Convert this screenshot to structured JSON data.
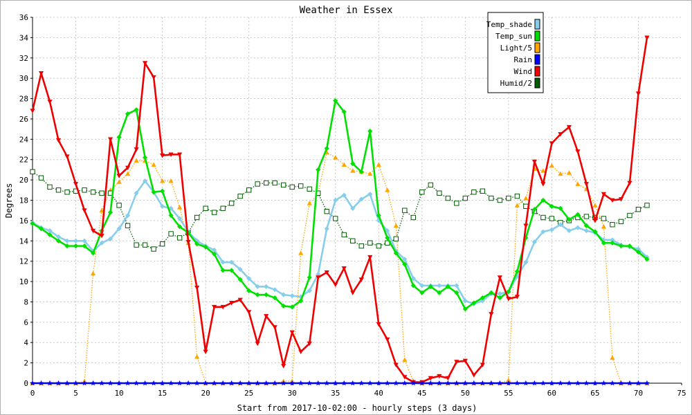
{
  "chart_data": {
    "type": "line",
    "title": "Weather in Essex",
    "xlabel": "Start from 2017-10-02:00 - hourly steps (3 days)",
    "ylabel": "Degrees",
    "xlim": [
      0,
      75
    ],
    "ylim": [
      0,
      36
    ],
    "x_ticks": [
      0,
      5,
      10,
      15,
      20,
      25,
      30,
      35,
      40,
      45,
      50,
      55,
      60,
      65,
      70,
      75
    ],
    "y_ticks": [
      0,
      2,
      4,
      6,
      8,
      10,
      12,
      14,
      16,
      18,
      20,
      22,
      24,
      26,
      28,
      30,
      32,
      34,
      36
    ],
    "grid": true,
    "legend_position": "top-right",
    "series": [
      {
        "name": "Temp_shade",
        "color": "#87ceeb",
        "marker": "diamond",
        "style": "solid",
        "values": [
          15.8,
          15.3,
          15.0,
          14.4,
          14.0,
          14.0,
          14.0,
          13.0,
          13.8,
          14.2,
          15.2,
          16.5,
          18.7,
          19.9,
          18.8,
          17.4,
          17.2,
          16.2,
          14.9,
          14.0,
          13.5,
          13.1,
          11.9,
          11.9,
          11.2,
          10.3,
          9.5,
          9.5,
          9.2,
          8.7,
          8.6,
          8.5,
          9.1,
          10.7,
          15.2,
          18.0,
          18.5,
          17.2,
          18.1,
          18.6,
          16.0,
          15.0,
          13.0,
          12.2,
          10.3,
          9.6,
          9.6,
          9.6,
          9.6,
          9.6,
          8.1,
          7.8,
          8.1,
          8.8,
          8.8,
          9.0,
          10.5,
          11.9,
          13.9,
          14.9,
          15.1,
          15.6,
          15.0,
          15.3,
          15.0,
          14.8,
          14.1,
          14.1,
          13.6,
          13.4,
          13.2,
          12.4
        ]
      },
      {
        "name": "Temp_sun",
        "color": "#00e000",
        "marker": "diamond",
        "style": "solid",
        "values": [
          15.7,
          15.2,
          14.6,
          14.0,
          13.5,
          13.5,
          13.5,
          12.8,
          15.0,
          16.8,
          24.2,
          26.5,
          26.9,
          22.2,
          18.8,
          18.9,
          16.5,
          15.4,
          14.8,
          13.7,
          13.4,
          12.7,
          11.1,
          11.1,
          10.2,
          9.1,
          8.7,
          8.7,
          8.4,
          7.6,
          7.5,
          8.1,
          10.4,
          21.0,
          23.1,
          27.8,
          26.7,
          21.6,
          20.8,
          24.8,
          16.5,
          14.3,
          12.8,
          11.7,
          9.6,
          8.9,
          9.5,
          8.9,
          9.5,
          8.9,
          7.3,
          7.9,
          8.4,
          8.9,
          8.4,
          9.0,
          11.0,
          14.3,
          17.1,
          18.0,
          17.4,
          17.2,
          16.1,
          16.6,
          15.5,
          14.9,
          13.8,
          13.8,
          13.5,
          13.5,
          12.9,
          12.2
        ]
      },
      {
        "name": "Light/5",
        "color": "#ffa500",
        "marker": "triangle",
        "style": "dotted",
        "values": [
          0,
          0,
          0,
          0,
          0,
          0,
          0.2,
          10.8,
          17.0,
          19.0,
          19.8,
          20.6,
          21.9,
          21.9,
          21.5,
          19.9,
          19.9,
          17.3,
          13.8,
          2.6,
          0,
          0,
          0,
          0,
          0,
          0,
          0,
          0,
          0,
          0.2,
          0.2,
          12.8,
          17.7,
          18.6,
          22.7,
          22.2,
          21.5,
          20.9,
          20.8,
          20.6,
          21.5,
          19.0,
          15.5,
          2.3,
          0.2,
          0,
          0,
          0,
          0,
          0,
          0,
          0,
          0,
          0,
          0,
          0.3,
          17.5,
          18.2,
          21.1,
          20.9,
          21.4,
          20.6,
          20.7,
          19.6,
          19.1,
          17.5,
          15.4,
          2.5,
          0,
          0,
          0,
          0
        ]
      },
      {
        "name": "Rain",
        "color": "#0000ff",
        "marker": "star",
        "style": "solid",
        "values": [
          0,
          0,
          0,
          0,
          0,
          0,
          0,
          0,
          0,
          0,
          0,
          0,
          0,
          0,
          0,
          0,
          0,
          0,
          0,
          0,
          0,
          0,
          0,
          0,
          0,
          0,
          0,
          0,
          0,
          0,
          0,
          0,
          0,
          0,
          0,
          0,
          0,
          0,
          0,
          0,
          0,
          0,
          0,
          0,
          0,
          0,
          0,
          0,
          0,
          0,
          0,
          0,
          0,
          0,
          0,
          0,
          0,
          0,
          0,
          0,
          0,
          0,
          0,
          0,
          0,
          0,
          0,
          0,
          0,
          0,
          0,
          0
        ]
      },
      {
        "name": "Wind",
        "color": "#ee0000",
        "marker": "triangle-down",
        "style": "solid",
        "values": [
          26.8,
          30.5,
          27.7,
          23.9,
          22.3,
          19.6,
          17.0,
          15.0,
          14.5,
          24.0,
          20.4,
          21.2,
          23.0,
          31.5,
          30.1,
          22.4,
          22.5,
          22.5,
          13.9,
          9.4,
          3.1,
          7.5,
          7.5,
          7.9,
          8.2,
          7.0,
          3.9,
          6.6,
          5.5,
          1.7,
          5.0,
          3.1,
          3.9,
          10.4,
          10.9,
          9.7,
          11.3,
          8.9,
          10.2,
          12.4,
          5.8,
          4.3,
          1.8,
          0.6,
          0.1,
          0.1,
          0.5,
          0.7,
          0.5,
          2.1,
          2.2,
          0.8,
          1.8,
          6.8,
          10.4,
          8.3,
          8.5,
          15.5,
          21.8,
          19.6,
          23.6,
          24.5,
          25.2,
          22.8,
          19.6,
          16.0,
          18.6,
          18.0,
          18.1,
          19.7,
          28.5,
          34.0
        ]
      },
      {
        "name": "Humid/2",
        "color": "#005a00",
        "marker": "square-open",
        "style": "dotted",
        "values": [
          20.8,
          20.2,
          19.3,
          19.0,
          18.8,
          18.9,
          19.0,
          18.8,
          18.7,
          18.7,
          17.5,
          15.5,
          13.6,
          13.6,
          13.2,
          13.7,
          14.7,
          14.3,
          14.8,
          16.3,
          17.2,
          16.8,
          17.2,
          17.7,
          18.4,
          19.0,
          19.6,
          19.7,
          19.7,
          19.5,
          19.3,
          19.4,
          19.1,
          18.7,
          16.9,
          16.2,
          14.6,
          14.0,
          13.5,
          13.8,
          13.5,
          13.8,
          14.2,
          17.0,
          16.3,
          18.8,
          19.5,
          18.7,
          18.2,
          17.7,
          18.2,
          18.8,
          18.9,
          18.2,
          18.0,
          18.2,
          18.4,
          17.4,
          16.9,
          16.3,
          16.2,
          15.8,
          16.0,
          16.3,
          16.4,
          16.3,
          16.2,
          15.6,
          15.9,
          16.5,
          17.1,
          17.5
        ]
      }
    ]
  }
}
